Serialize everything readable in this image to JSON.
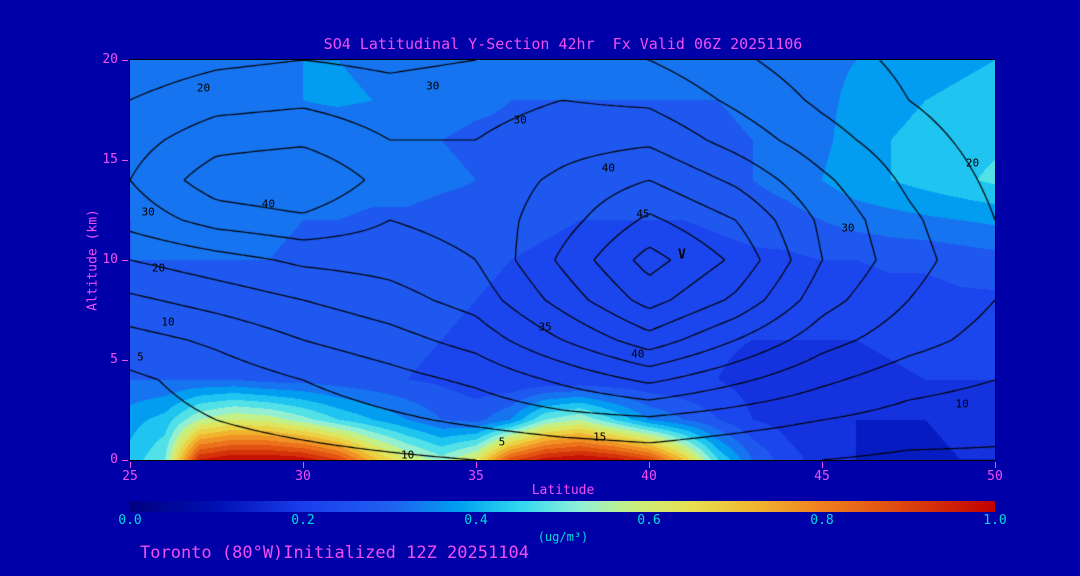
{
  "title": "SO4 Latitudinal Y-Section 42hr  Fx Valid 06Z 20251106",
  "footer": "Toronto (80°W)Initialized 12Z 20251104",
  "colors": {
    "background": "#0000a8",
    "title_text": "#f24ff2",
    "axis_text": "#f24ff2",
    "colorbar_text": "#00dcdc",
    "contour_line": "#000000",
    "frame": "#000000"
  },
  "axes": {
    "x": {
      "label": "Latitude",
      "min": 25,
      "max": 50,
      "ticks": [
        25,
        30,
        35,
        40,
        45,
        50
      ]
    },
    "y": {
      "label": "Altitude (km)",
      "min": 0,
      "max": 20,
      "ticks": [
        0,
        5,
        10,
        15,
        20
      ]
    }
  },
  "colorbar": {
    "min": 0.0,
    "max": 1.0,
    "ticks": [
      "0.0",
      "0.2",
      "0.4",
      "0.6",
      "0.8",
      "1.0"
    ],
    "units": "(ug/m³)",
    "stops": [
      [
        0.0,
        "#000080"
      ],
      [
        0.1,
        "#0010b4"
      ],
      [
        0.2,
        "#1a3eec"
      ],
      [
        0.3,
        "#2060f0"
      ],
      [
        0.38,
        "#00a0f0"
      ],
      [
        0.45,
        "#30d8f0"
      ],
      [
        0.52,
        "#90f0d8"
      ],
      [
        0.58,
        "#c8f080"
      ],
      [
        0.65,
        "#e8e050"
      ],
      [
        0.72,
        "#f0b830"
      ],
      [
        0.8,
        "#f08020"
      ],
      [
        0.88,
        "#e05010"
      ],
      [
        1.0,
        "#c00000"
      ]
    ]
  },
  "chart_data": {
    "type": "heatmap",
    "title": "SO4 Latitudinal Y-Section 42hr  Fx Valid 06Z 20251106",
    "xlabel": "Latitude",
    "ylabel": "Altitude (km)",
    "units": "ug/m3",
    "xlim": [
      25,
      50
    ],
    "ylim": [
      0,
      20
    ],
    "x": [
      25,
      26,
      27,
      28,
      29,
      30,
      31,
      32,
      33,
      34,
      35,
      36,
      37,
      38,
      39,
      40,
      41,
      42,
      43,
      44,
      45,
      46,
      47,
      48,
      49,
      50
    ],
    "y": [
      0,
      2,
      4,
      6,
      8,
      10,
      12,
      14,
      16,
      18,
      20
    ],
    "values": [
      [
        0.42,
        0.5,
        0.95,
        1.0,
        1.0,
        0.98,
        0.9,
        0.72,
        0.6,
        0.52,
        0.62,
        0.88,
        0.97,
        1.0,
        0.97,
        0.9,
        0.7,
        0.45,
        0.3,
        0.22,
        0.18,
        0.15,
        0.14,
        0.14,
        0.15,
        0.15
      ],
      [
        0.38,
        0.42,
        0.55,
        0.6,
        0.58,
        0.52,
        0.45,
        0.4,
        0.35,
        0.3,
        0.28,
        0.35,
        0.5,
        0.55,
        0.45,
        0.35,
        0.3,
        0.25,
        0.2,
        0.18,
        0.16,
        0.15,
        0.15,
        0.15,
        0.16,
        0.18
      ],
      [
        0.3,
        0.3,
        0.3,
        0.3,
        0.28,
        0.28,
        0.27,
        0.26,
        0.25,
        0.24,
        0.22,
        0.2,
        0.2,
        0.2,
        0.2,
        0.2,
        0.2,
        0.2,
        0.18,
        0.18,
        0.18,
        0.18,
        0.19,
        0.2,
        0.2,
        0.2
      ],
      [
        0.28,
        0.28,
        0.28,
        0.28,
        0.28,
        0.27,
        0.27,
        0.26,
        0.26,
        0.25,
        0.24,
        0.23,
        0.22,
        0.22,
        0.21,
        0.21,
        0.21,
        0.21,
        0.2,
        0.2,
        0.2,
        0.2,
        0.21,
        0.22,
        0.22,
        0.22
      ],
      [
        0.28,
        0.28,
        0.29,
        0.29,
        0.29,
        0.28,
        0.28,
        0.27,
        0.27,
        0.26,
        0.25,
        0.24,
        0.23,
        0.22,
        0.22,
        0.21,
        0.22,
        0.22,
        0.22,
        0.22,
        0.22,
        0.22,
        0.23,
        0.23,
        0.24,
        0.24
      ],
      [
        0.3,
        0.3,
        0.3,
        0.3,
        0.3,
        0.29,
        0.29,
        0.28,
        0.28,
        0.27,
        0.26,
        0.25,
        0.24,
        0.23,
        0.22,
        0.22,
        0.22,
        0.23,
        0.24,
        0.24,
        0.25,
        0.25,
        0.26,
        0.26,
        0.27,
        0.28
      ],
      [
        0.3,
        0.31,
        0.32,
        0.32,
        0.31,
        0.3,
        0.3,
        0.29,
        0.29,
        0.28,
        0.28,
        0.27,
        0.26,
        0.25,
        0.25,
        0.25,
        0.25,
        0.26,
        0.27,
        0.28,
        0.3,
        0.32,
        0.33,
        0.34,
        0.35,
        0.36
      ],
      [
        0.33,
        0.33,
        0.34,
        0.34,
        0.34,
        0.33,
        0.33,
        0.32,
        0.32,
        0.31,
        0.3,
        0.29,
        0.28,
        0.28,
        0.28,
        0.28,
        0.28,
        0.29,
        0.3,
        0.32,
        0.35,
        0.38,
        0.4,
        0.42,
        0.44,
        0.46
      ],
      [
        0.35,
        0.34,
        0.33,
        0.32,
        0.32,
        0.31,
        0.3,
        0.3,
        0.3,
        0.3,
        0.29,
        0.29,
        0.29,
        0.29,
        0.28,
        0.28,
        0.28,
        0.29,
        0.3,
        0.32,
        0.34,
        0.37,
        0.4,
        0.42,
        0.43,
        0.44
      ],
      [
        0.33,
        0.32,
        0.32,
        0.32,
        0.33,
        0.35,
        0.36,
        0.35,
        0.33,
        0.32,
        0.31,
        0.3,
        0.3,
        0.3,
        0.3,
        0.3,
        0.3,
        0.3,
        0.31,
        0.32,
        0.34,
        0.36,
        0.38,
        0.4,
        0.41,
        0.42
      ],
      [
        0.32,
        0.32,
        0.32,
        0.33,
        0.34,
        0.35,
        0.35,
        0.34,
        0.33,
        0.32,
        0.32,
        0.31,
        0.31,
        0.31,
        0.31,
        0.31,
        0.31,
        0.31,
        0.32,
        0.33,
        0.34,
        0.35,
        0.37,
        0.38,
        0.39,
        0.4
      ]
    ],
    "contour": {
      "x": [
        25,
        27.5,
        30,
        32.5,
        35,
        37.5,
        40,
        42.5,
        45,
        47.5,
        50
      ],
      "y": [
        0,
        2,
        4,
        6,
        8,
        10,
        12,
        14,
        16,
        18,
        20
      ],
      "levels": [
        5,
        10,
        15,
        20,
        25,
        30,
        35,
        40,
        45,
        50
      ],
      "values": [
        [
          1,
          2,
          3,
          4,
          5,
          6,
          7,
          6,
          5,
          4,
          4
        ],
        [
          3,
          5,
          7,
          9,
          11,
          13,
          14,
          12,
          10,
          8,
          7
        ],
        [
          4,
          7,
          10,
          13,
          16,
          21,
          26,
          21,
          16,
          12,
          10
        ],
        [
          8,
          11,
          15,
          18,
          22,
          30,
          38,
          30,
          22,
          17,
          13
        ],
        [
          14,
          17,
          20,
          23,
          27,
          37,
          47,
          39,
          27,
          20,
          15
        ],
        [
          20,
          23,
          26,
          27,
          30,
          41,
          52,
          44,
          30,
          22,
          16
        ],
        [
          27,
          32,
          34,
          30,
          32,
          38,
          46,
          40,
          29,
          21,
          15
        ],
        [
          30,
          38,
          40,
          33,
          32,
          36,
          40,
          34,
          26,
          19,
          14
        ],
        [
          28,
          33,
          34,
          30,
          30,
          33,
          34,
          28,
          22,
          17,
          13
        ],
        [
          25,
          28,
          29,
          27,
          28,
          30,
          29,
          24,
          19,
          15,
          12
        ],
        [
          22,
          24,
          25,
          24,
          25,
          26,
          25,
          21,
          17,
          14,
          11
        ]
      ]
    },
    "contour_labels": [
      {
        "t": "20",
        "fx": 0.085,
        "fy": 0.07
      },
      {
        "t": "30",
        "fx": 0.35,
        "fy": 0.065
      },
      {
        "t": "30",
        "fx": 0.451,
        "fy": 0.15
      },
      {
        "t": "40",
        "fx": 0.553,
        "fy": 0.27
      },
      {
        "t": "45",
        "fx": 0.593,
        "fy": 0.385
      },
      {
        "t": "40",
        "fx": 0.16,
        "fy": 0.36
      },
      {
        "t": "30",
        "fx": 0.021,
        "fy": 0.38
      },
      {
        "t": "20",
        "fx": 0.033,
        "fy": 0.52
      },
      {
        "t": "10",
        "fx": 0.044,
        "fy": 0.655
      },
      {
        "t": "5",
        "fx": 0.012,
        "fy": 0.742
      },
      {
        "t": "35",
        "fx": 0.48,
        "fy": 0.667
      },
      {
        "t": "40",
        "fx": 0.587,
        "fy": 0.735
      },
      {
        "t": "20",
        "fx": 0.974,
        "fy": 0.257
      },
      {
        "t": "30",
        "fx": 0.83,
        "fy": 0.42
      },
      {
        "t": "10",
        "fx": 0.962,
        "fy": 0.86
      },
      {
        "t": "10",
        "fx": 0.321,
        "fy": 0.987
      },
      {
        "t": "15",
        "fx": 0.543,
        "fy": 0.942
      },
      {
        "t": "5",
        "fx": 0.43,
        "fy": 0.955
      },
      {
        "t": "V",
        "fx": 0.638,
        "fy": 0.487
      }
    ]
  }
}
